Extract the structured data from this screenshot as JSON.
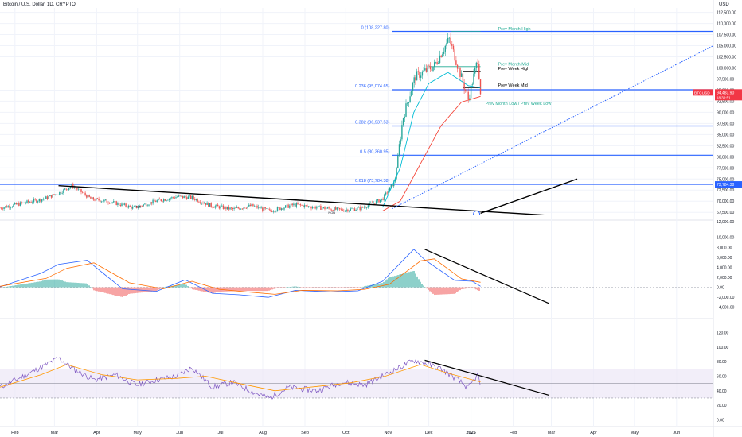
{
  "header": {
    "symbol_title": "Bitcoin / U.S. Dollar, 1D, CRYPTO",
    "currency": "USD"
  },
  "colors": {
    "candle_up": "#26a69a",
    "candle_down": "#ef5350",
    "fib_line": "#2962ff",
    "ma_fast": "#00bcd4",
    "ma_slow": "#f44336",
    "macd_line": "#2962ff",
    "macd_signal": "#ff6d00",
    "rsi_line": "#7e57c2",
    "rsi_ma": "#ff9800",
    "rsi_band": "#ede7f6",
    "trendline": "#000000",
    "projection": "#2962ff",
    "weekly_level": "#000000",
    "monthly_level": "#22ab94",
    "price_badge": "#f23645"
  },
  "chart_data": [
    {
      "type": "candlestick",
      "pane": "price",
      "title": "Bitcoin / U.S. Dollar, 1D, CRYPTO",
      "x_tick_labels": [
        "Feb",
        "Mar",
        "Apr",
        "May",
        "Jun",
        "Jul",
        "Aug",
        "Sep",
        "Oct",
        "Nov",
        "Dec",
        "2025",
        "Feb",
        "Mar",
        "Apr",
        "May",
        "Jun"
      ],
      "y_tick_labels": [
        "112,500.00",
        "110,000.00",
        "107,500.00",
        "105,000.00",
        "102,500.00",
        "100,000.00",
        "97,500.00",
        "95,000.00",
        "92,500.00",
        "90,000.00",
        "87,500.00",
        "85,000.00",
        "82,500.00",
        "80,000.00",
        "77,500.00",
        "75,000.00",
        "72,500.00",
        "70,000.00",
        "67,500.00"
      ],
      "y_axis_label": "USD",
      "visible_range": [
        67000,
        113500
      ],
      "last_price": {
        "symbol": "BTCUSD",
        "value": "94,483.90",
        "countdown": "18:30:51"
      },
      "fib_levels": [
        {
          "label": "0 (108,227.80)",
          "value": 108227.8
        },
        {
          "label": "0.236 (95,074.65)",
          "value": 95074.65
        },
        {
          "label": "0.382 (86,937.53)",
          "value": 86937.53
        },
        {
          "label": "0.5 (80,360.95)",
          "value": 80360.95
        },
        {
          "label": "0.618 (73,784.38)",
          "value": 73784.38,
          "axis_badge": "73,784.38"
        }
      ],
      "levels": [
        {
          "label": "Prev Month High",
          "value": 108227.8,
          "kind": "monthly"
        },
        {
          "label": "Prev Month Mid",
          "value": 100300,
          "kind": "monthly"
        },
        {
          "label": "Prev Week High",
          "value": 99300,
          "kind": "weekly"
        },
        {
          "label": "Prev Week Mid",
          "value": 95500,
          "kind": "weekly"
        },
        {
          "label": "Prev Month Low / Prev Week Low",
          "value": 91400,
          "kind": "monthly"
        }
      ],
      "annotations": [
        "NOB",
        "NOB"
      ],
      "series": [
        {
          "name": "",
          "kind": "close",
          "x": [
            "2024-01-21",
            "2024-02-06",
            "2024-02-22",
            "2024-03-04",
            "2024-03-14",
            "2024-03-28",
            "2024-04-12",
            "2024-04-28",
            "2024-05-14",
            "2024-05-30",
            "2024-06-10",
            "2024-06-24",
            "2024-07-10",
            "2024-07-24",
            "2024-08-06",
            "2024-08-24",
            "2024-09-10",
            "2024-09-28",
            "2024-10-12",
            "2024-10-28",
            "2024-11-06",
            "2024-11-12",
            "2024-11-21",
            "2024-12-05",
            "2024-12-16",
            "2024-12-30",
            "2025-01-06",
            "2025-01-08"
          ],
          "values": [
            68500,
            69500,
            70500,
            71800,
            73500,
            70500,
            69800,
            68500,
            70000,
            71000,
            70800,
            69000,
            68200,
            69000,
            67800,
            69200,
            68600,
            68000,
            68400,
            70500,
            74500,
            88800,
            98000,
            100500,
            106500,
            93000,
            102000,
            94483.9
          ]
        },
        {
          "name": "",
          "kind": "ma_fast",
          "x": [
            "2024-10-28",
            "2024-11-10",
            "2024-11-20",
            "2024-12-01",
            "2024-12-15",
            "2024-12-30",
            "2025-01-08"
          ],
          "values": [
            68600,
            77500,
            90000,
            96500,
            99000,
            96000,
            95500
          ]
        },
        {
          "name": "",
          "kind": "ma_slow",
          "x": [
            "2024-10-28",
            "2024-11-10",
            "2024-11-25",
            "2024-12-10",
            "2024-12-25",
            "2025-01-08"
          ],
          "values": [
            67800,
            70000,
            78500,
            87000,
            92300,
            93600
          ]
        }
      ],
      "drawings": [
        {
          "kind": "trendline",
          "from": {
            "x": "2024-03-04",
            "y": 73500
          },
          "to": {
            "x": "2025-02-28",
            "y": 66800
          }
        },
        {
          "kind": "trendline",
          "from": {
            "x": "2025-01-08",
            "y": 67300
          },
          "to": {
            "x": "2025-03-20",
            "y": 75000
          }
        },
        {
          "kind": "projection",
          "from": {
            "x": "2024-11-04",
            "y": 68300
          },
          "to": {
            "x": "2025-06-28",
            "y": 105000
          }
        }
      ],
      "grid": true
    },
    {
      "type": "histogram+line",
      "pane": "macd",
      "y_tick_labels": [
        "12,000.00",
        "10,000.00",
        "8,000.00",
        "6,000.00",
        "4,000.00",
        "2,000.00",
        "0.00",
        "−2,000.00",
        "−4,000.00"
      ],
      "ylim": [
        -4200,
        12500
      ],
      "series": [
        {
          "name": "",
          "kind": "macd",
          "x": [
            "2024-01-21",
            "2024-02-20",
            "2024-03-04",
            "2024-03-25",
            "2024-04-20",
            "2024-05-15",
            "2024-06-05",
            "2024-06-25",
            "2024-07-15",
            "2024-08-05",
            "2024-08-25",
            "2024-09-20",
            "2024-10-10",
            "2024-10-28",
            "2024-11-20",
            "2024-11-28",
            "2024-12-20",
            "2025-01-02",
            "2025-01-08"
          ],
          "values": [
            100,
            2800,
            4600,
            5400,
            -300,
            -800,
            1500,
            -1200,
            -1500,
            -2000,
            -600,
            -900,
            -700,
            1200,
            7600,
            5500,
            1400,
            1200,
            200
          ]
        },
        {
          "name": "",
          "kind": "signal",
          "x": [
            "2024-01-21",
            "2024-02-24",
            "2024-03-10",
            "2024-03-30",
            "2024-04-25",
            "2024-05-20",
            "2024-06-10",
            "2024-06-30",
            "2024-07-20",
            "2024-08-10",
            "2024-08-30",
            "2024-09-25",
            "2024-10-15",
            "2024-11-02",
            "2024-11-25",
            "2024-12-05",
            "2024-12-25",
            "2025-01-08"
          ],
          "values": [
            200,
            1800,
            3800,
            4900,
            900,
            -300,
            1200,
            -400,
            -900,
            -1400,
            -600,
            -700,
            -400,
            600,
            5300,
            5700,
            1700,
            1000
          ]
        }
      ],
      "drawings": [
        {
          "kind": "trendline",
          "from": {
            "x": "2024-11-28",
            "y": 7600
          },
          "to": {
            "x": "2025-02-27",
            "y": -3200
          }
        }
      ]
    },
    {
      "type": "line",
      "pane": "rsi",
      "y_tick_labels": [
        "120.00",
        "100.00",
        "80.00",
        "60.00",
        "40.00",
        "20.00",
        "0.00"
      ],
      "ylim": [
        -5,
        125
      ],
      "band": [
        30,
        70
      ],
      "midline": 50,
      "series": [
        {
          "name": "",
          "kind": "rsi",
          "x": [
            "2024-01-21",
            "2024-02-05",
            "2024-02-20",
            "2024-03-04",
            "2024-03-15",
            "2024-03-30",
            "2024-04-15",
            "2024-04-30",
            "2024-05-15",
            "2024-05-30",
            "2024-06-10",
            "2024-06-25",
            "2024-07-10",
            "2024-07-25",
            "2024-08-06",
            "2024-08-20",
            "2024-09-10",
            "2024-09-28",
            "2024-10-15",
            "2024-10-30",
            "2024-11-20",
            "2024-11-28",
            "2024-12-10",
            "2024-12-20",
            "2024-12-30",
            "2025-01-06",
            "2025-01-08"
          ],
          "values": [
            45,
            58,
            72,
            85,
            70,
            55,
            62,
            48,
            55,
            60,
            72,
            45,
            52,
            38,
            30,
            45,
            40,
            52,
            48,
            62,
            82,
            78,
            70,
            58,
            44,
            62,
            47
          ]
        },
        {
          "name": "",
          "kind": "rsi_ma",
          "x": [
            "2024-01-21",
            "2024-02-20",
            "2024-03-10",
            "2024-04-05",
            "2024-05-01",
            "2024-05-30",
            "2024-06-20",
            "2024-07-15",
            "2024-08-10",
            "2024-09-10",
            "2024-10-05",
            "2024-10-30",
            "2024-11-25",
            "2024-12-15",
            "2025-01-08"
          ],
          "values": [
            45,
            62,
            76,
            62,
            55,
            57,
            60,
            50,
            40,
            46,
            51,
            60,
            76,
            64,
            52
          ]
        }
      ],
      "drawings": [
        {
          "kind": "trendline",
          "from": {
            "x": "2024-11-28",
            "y": 82
          },
          "to": {
            "x": "2025-02-27",
            "y": 34
          }
        }
      ]
    }
  ]
}
